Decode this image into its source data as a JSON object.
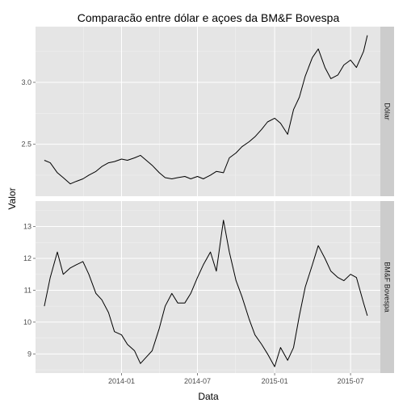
{
  "chart_data": {
    "type": "line",
    "title": "Comparacão entre dólar e açoes da BM&F Bovespa",
    "xlabel": "Data",
    "ylabel": "Valor",
    "x_axis": {
      "type": "date",
      "range": [
        "2013-06-10",
        "2015-09-10"
      ],
      "ticks": [
        {
          "date": "2014-01-01",
          "label": "2014-01"
        },
        {
          "date": "2014-07-01",
          "label": "2014-07"
        },
        {
          "date": "2015-01-01",
          "label": "2015-01"
        },
        {
          "date": "2015-07-01",
          "label": "2015-07"
        }
      ]
    },
    "grid": true,
    "facets": [
      {
        "name": "Dólar",
        "ylim": [
          2.08,
          3.45
        ],
        "yticks": [
          {
            "value": 2.5,
            "label": "2.5"
          },
          {
            "value": 3.0,
            "label": "3.0"
          }
        ],
        "x": [
          "2013-07-01",
          "2013-07-15",
          "2013-08-01",
          "2013-08-15",
          "2013-09-01",
          "2013-09-15",
          "2013-10-01",
          "2013-10-15",
          "2013-11-01",
          "2013-11-15",
          "2013-12-01",
          "2013-12-15",
          "2014-01-01",
          "2014-01-15",
          "2014-02-01",
          "2014-02-15",
          "2014-03-01",
          "2014-03-15",
          "2014-04-01",
          "2014-04-15",
          "2014-05-01",
          "2014-05-15",
          "2014-06-01",
          "2014-06-15",
          "2014-07-01",
          "2014-07-15",
          "2014-08-01",
          "2014-08-15",
          "2014-09-01",
          "2014-09-15",
          "2014-10-01",
          "2014-10-15",
          "2014-11-01",
          "2014-11-15",
          "2014-12-01",
          "2014-12-15",
          "2015-01-01",
          "2015-01-15",
          "2015-02-01",
          "2015-02-15",
          "2015-03-01",
          "2015-03-15",
          "2015-04-01",
          "2015-04-15",
          "2015-05-01",
          "2015-05-15",
          "2015-06-01",
          "2015-06-15",
          "2015-07-01",
          "2015-07-15",
          "2015-08-01",
          "2015-08-10"
        ],
        "values": [
          2.37,
          2.35,
          2.27,
          2.23,
          2.18,
          2.2,
          2.22,
          2.25,
          2.28,
          2.32,
          2.35,
          2.36,
          2.38,
          2.37,
          2.39,
          2.41,
          2.37,
          2.33,
          2.27,
          2.23,
          2.22,
          2.23,
          2.24,
          2.22,
          2.24,
          2.22,
          2.25,
          2.28,
          2.27,
          2.39,
          2.43,
          2.48,
          2.52,
          2.56,
          2.62,
          2.68,
          2.71,
          2.67,
          2.58,
          2.78,
          2.88,
          3.05,
          3.2,
          3.27,
          3.12,
          3.03,
          3.06,
          3.14,
          3.18,
          3.12,
          3.25,
          3.38
        ]
      },
      {
        "name": "BM&F Bovespa",
        "ylim": [
          8.4,
          13.8
        ],
        "yticks": [
          {
            "value": 9,
            "label": "9"
          },
          {
            "value": 10,
            "label": "10"
          },
          {
            "value": 11,
            "label": "11"
          },
          {
            "value": 12,
            "label": "12"
          },
          {
            "value": 13,
            "label": "13"
          }
        ],
        "x": [
          "2013-07-01",
          "2013-07-15",
          "2013-08-01",
          "2013-08-15",
          "2013-09-01",
          "2013-09-15",
          "2013-10-01",
          "2013-10-15",
          "2013-11-01",
          "2013-11-15",
          "2013-12-01",
          "2013-12-15",
          "2014-01-01",
          "2014-01-15",
          "2014-02-01",
          "2014-02-15",
          "2014-03-01",
          "2014-03-15",
          "2014-04-01",
          "2014-04-15",
          "2014-05-01",
          "2014-05-15",
          "2014-06-01",
          "2014-06-15",
          "2014-07-01",
          "2014-07-15",
          "2014-08-01",
          "2014-08-15",
          "2014-09-01",
          "2014-09-15",
          "2014-10-01",
          "2014-10-15",
          "2014-11-01",
          "2014-11-15",
          "2014-12-01",
          "2014-12-15",
          "2015-01-01",
          "2015-01-15",
          "2015-02-01",
          "2015-02-15",
          "2015-03-01",
          "2015-03-15",
          "2015-04-01",
          "2015-04-15",
          "2015-05-01",
          "2015-05-15",
          "2015-06-01",
          "2015-06-15",
          "2015-07-01",
          "2015-07-15",
          "2015-08-01",
          "2015-08-10"
        ],
        "values": [
          10.5,
          11.4,
          12.2,
          11.5,
          11.7,
          11.8,
          11.9,
          11.5,
          10.9,
          10.7,
          10.3,
          9.7,
          9.6,
          9.3,
          9.1,
          8.7,
          8.9,
          9.1,
          9.8,
          10.5,
          10.9,
          10.6,
          10.6,
          10.9,
          11.4,
          11.8,
          12.2,
          11.6,
          13.2,
          12.2,
          11.3,
          10.8,
          10.1,
          9.6,
          9.3,
          9.0,
          8.6,
          9.2,
          8.8,
          9.2,
          10.2,
          11.1,
          11.8,
          12.4,
          12.0,
          11.6,
          11.4,
          11.3,
          11.5,
          11.4,
          10.6,
          10.2
        ]
      }
    ]
  }
}
